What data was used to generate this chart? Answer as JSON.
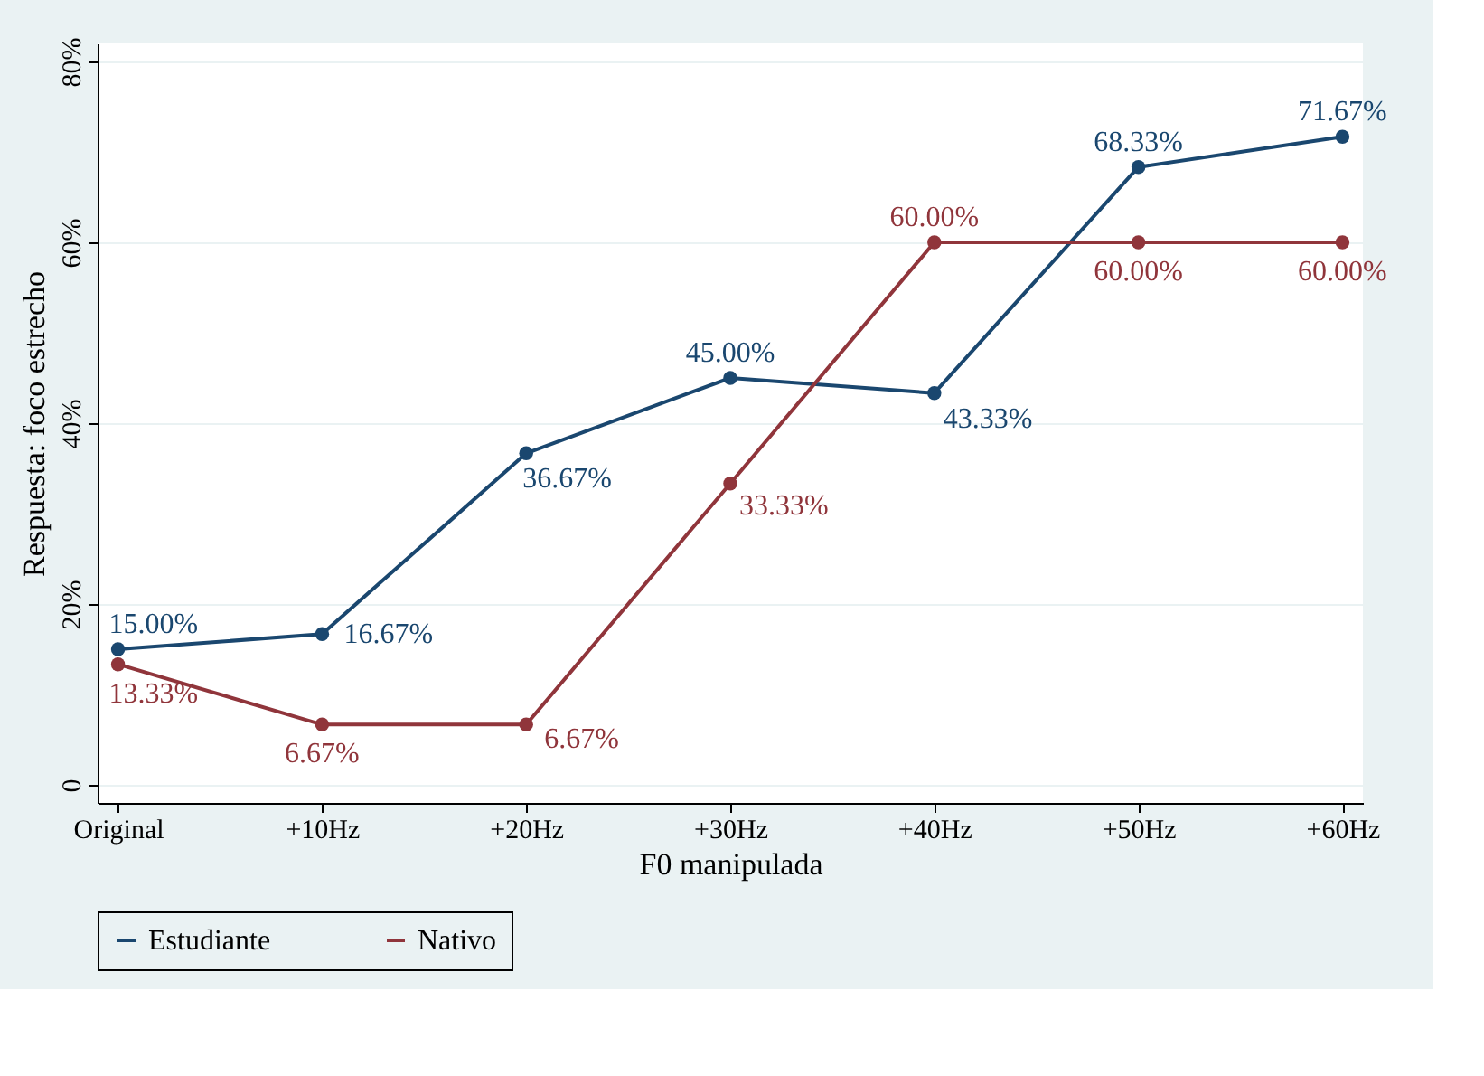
{
  "chart_data": {
    "type": "line",
    "xlabel": "F0 manipulada",
    "ylabel": "Respuesta: foco estrecho",
    "categories": [
      "Original",
      "+10Hz",
      "+20Hz",
      "+30Hz",
      "+40Hz",
      "+50Hz",
      "+60Hz"
    ],
    "ylim": [
      -2,
      82
    ],
    "yticks": [
      {
        "value": 0,
        "label": "0"
      },
      {
        "value": 20,
        "label": "20%"
      },
      {
        "value": 40,
        "label": "40%"
      },
      {
        "value": 60,
        "label": "60%"
      },
      {
        "value": 80,
        "label": "80%"
      }
    ],
    "grid": "y",
    "legend": "bottom",
    "marker": "circle",
    "line_style": "solid",
    "series": [
      {
        "name": "Estudiante",
        "color": "#1a476f",
        "values": [
          15.0,
          16.67,
          36.67,
          45.0,
          43.33,
          68.33,
          71.67
        ],
        "value_labels": [
          "15.00%",
          "16.67%",
          "36.67%",
          "45.00%",
          "43.33%",
          "68.33%",
          "71.67%"
        ]
      },
      {
        "name": "Nativo",
        "color": "#90353b",
        "values": [
          13.33,
          6.67,
          6.67,
          33.33,
          60.0,
          60.0,
          60.0
        ],
        "value_labels": [
          "13.33%",
          "6.67%",
          "6.67%",
          "33.33%",
          "60.00%",
          "60.00%",
          "60.00%"
        ]
      }
    ]
  }
}
